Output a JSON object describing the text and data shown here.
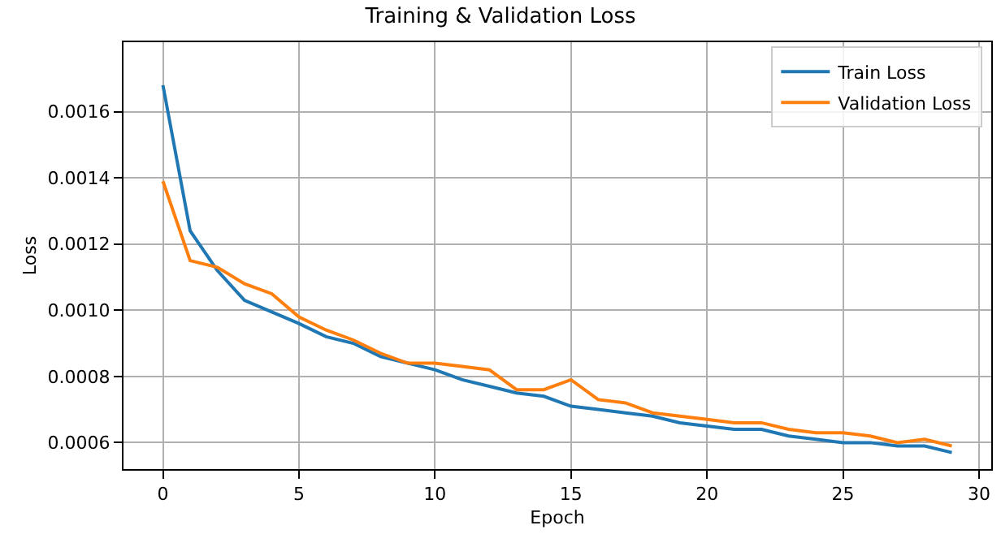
{
  "chart_data": {
    "type": "line",
    "title": "Training & Validation Loss",
    "xlabel": "Epoch",
    "ylabel": "Loss",
    "x": [
      0,
      1,
      2,
      3,
      4,
      5,
      6,
      7,
      8,
      9,
      10,
      11,
      12,
      13,
      14,
      15,
      16,
      17,
      18,
      19,
      20,
      21,
      22,
      23,
      24,
      25,
      26,
      27,
      28,
      29
    ],
    "series": [
      {
        "name": "Train Loss",
        "color": "#1f77b4",
        "values": [
          0.00168,
          0.00124,
          0.00112,
          0.00103,
          0.000995,
          0.00096,
          0.00092,
          0.0009,
          0.00086,
          0.00084,
          0.00082,
          0.00079,
          0.00077,
          0.00075,
          0.00074,
          0.00071,
          0.0007,
          0.00069,
          0.00068,
          0.00066,
          0.00065,
          0.00064,
          0.00064,
          0.00062,
          0.00061,
          0.0006,
          0.0006,
          0.00059,
          0.00059,
          0.00057
        ]
      },
      {
        "name": "Validation Loss",
        "color": "#ff7f0e",
        "values": [
          0.00139,
          0.00115,
          0.00113,
          0.00108,
          0.00105,
          0.00098,
          0.00094,
          0.00091,
          0.00087,
          0.00084,
          0.00084,
          0.00083,
          0.00082,
          0.00076,
          0.00076,
          0.00079,
          0.00073,
          0.00072,
          0.00069,
          0.00068,
          0.00067,
          0.00066,
          0.00066,
          0.00064,
          0.00063,
          0.00063,
          0.00062,
          0.0006,
          0.00061,
          0.00059
        ]
      }
    ],
    "xlim": [
      -1.45,
      30.45
    ],
    "xticks": [
      0,
      5,
      10,
      15,
      20,
      25,
      30
    ],
    "ylim": [
      0.00052,
      0.00181
    ],
    "yticks": [
      {
        "value": 0.0006,
        "label": "0.0006"
      },
      {
        "value": 0.0008,
        "label": "0.0008"
      },
      {
        "value": 0.001,
        "label": "0.0010"
      },
      {
        "value": 0.0012,
        "label": "0.0012"
      },
      {
        "value": 0.0014,
        "label": "0.0014"
      },
      {
        "value": 0.0016,
        "label": "0.0016"
      }
    ],
    "grid": true,
    "legend": "top right",
    "marker": "none",
    "line_style": "solid"
  }
}
